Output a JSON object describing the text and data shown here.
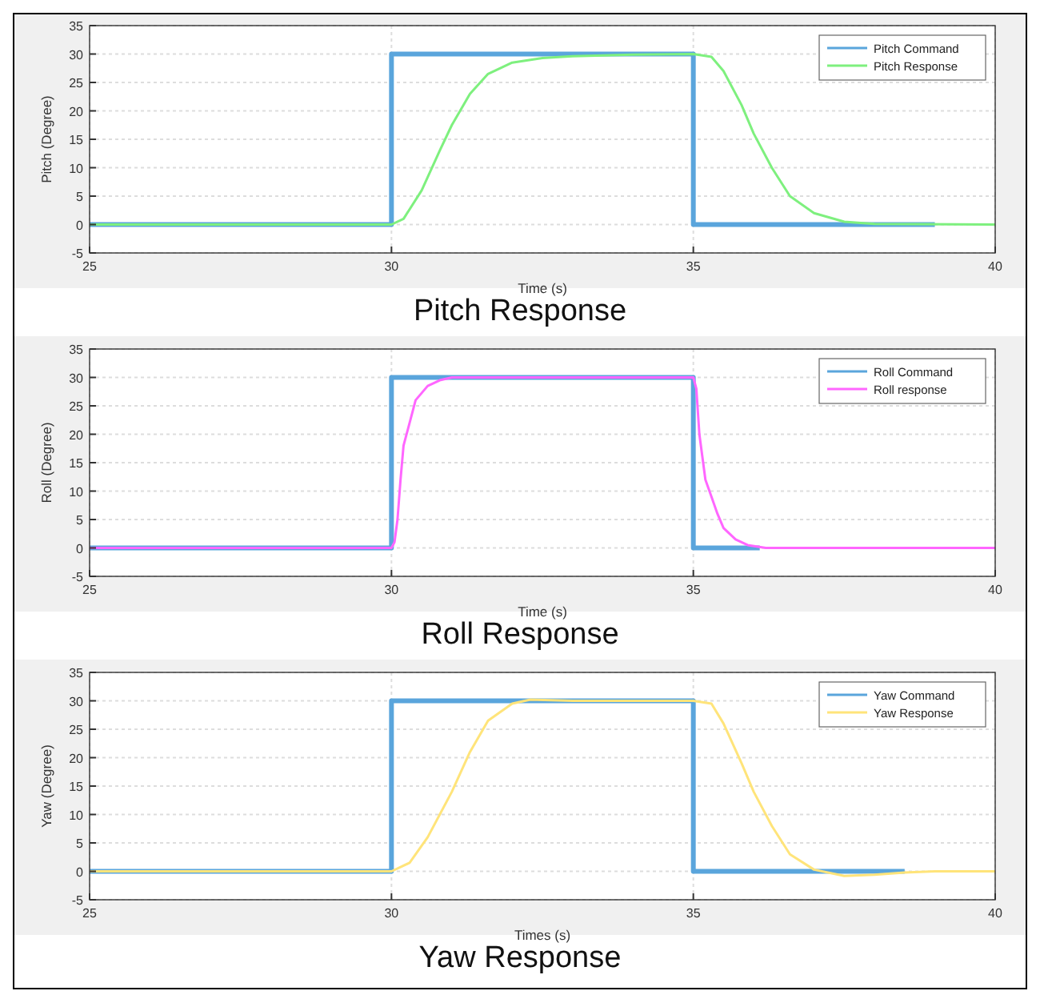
{
  "chart_data": [
    {
      "type": "line",
      "title": "Pitch Response",
      "xlabel": "Time (s)",
      "ylabel": "Pitch (Degree)",
      "xlim": [
        25,
        40
      ],
      "xticks": [
        25,
        30,
        35,
        40
      ],
      "ylim": [
        -5,
        35
      ],
      "yticks": [
        -5,
        0,
        5,
        10,
        15,
        20,
        25,
        30,
        35
      ],
      "grid": true,
      "legend": "top right",
      "series": [
        {
          "name": "Pitch Command",
          "color": "#5aa5dc",
          "x": [
            25,
            30,
            30,
            35,
            35,
            39
          ],
          "values": [
            0,
            0,
            30,
            30,
            0,
            0
          ]
        },
        {
          "name": "Pitch Response",
          "color": "#7ef07e",
          "x": [
            25,
            30,
            30.2,
            30.5,
            30.8,
            31,
            31.3,
            31.6,
            32,
            32.5,
            33,
            34,
            35,
            35.3,
            35.5,
            35.8,
            36,
            36.3,
            36.6,
            37,
            37.5,
            38,
            40
          ],
          "values": [
            0,
            0,
            1,
            6,
            13,
            17.5,
            23,
            26.5,
            28.5,
            29.3,
            29.6,
            29.9,
            30,
            29.5,
            27,
            21,
            16,
            10,
            5,
            2,
            0.5,
            0.1,
            0
          ]
        }
      ]
    },
    {
      "type": "line",
      "title": "Roll Response",
      "xlabel": "Time (s)",
      "ylabel": "Roll (Degree)",
      "xlim": [
        25,
        40
      ],
      "xticks": [
        25,
        30,
        35,
        40
      ],
      "ylim": [
        -5,
        35
      ],
      "yticks": [
        -5,
        0,
        5,
        10,
        15,
        20,
        25,
        30,
        35
      ],
      "grid": true,
      "legend": "top right",
      "series": [
        {
          "name": "Roll Command",
          "color": "#5aa5dc",
          "x": [
            25,
            30,
            30,
            35,
            35,
            36.1
          ],
          "values": [
            0,
            0,
            30,
            30,
            0,
            0
          ]
        },
        {
          "name": "Roll response",
          "color": "#ff66ff",
          "x": [
            25,
            30,
            30.05,
            30.1,
            30.15,
            30.2,
            30.3,
            30.4,
            30.6,
            30.8,
            31,
            35,
            35.05,
            35.1,
            35.2,
            35.3,
            35.4,
            35.5,
            35.7,
            35.9,
            36.2,
            40
          ],
          "values": [
            0,
            0,
            1,
            5,
            12,
            18,
            22,
            26,
            28.5,
            29.5,
            30,
            30,
            28,
            20,
            12,
            9,
            6,
            3.5,
            1.5,
            0.5,
            0,
            0
          ]
        }
      ]
    },
    {
      "type": "line",
      "title": "Yaw Response",
      "xlabel": "Times (s)",
      "ylabel": "Yaw (Degree)",
      "xlim": [
        25,
        40
      ],
      "xticks": [
        25,
        30,
        35,
        40
      ],
      "ylim": [
        -5,
        35
      ],
      "yticks": [
        -5,
        0,
        5,
        10,
        15,
        20,
        25,
        30,
        35
      ],
      "grid": true,
      "legend": "top right",
      "series": [
        {
          "name": "Yaw Command",
          "color": "#5aa5dc",
          "x": [
            25,
            30,
            30,
            35,
            35,
            38.5
          ],
          "values": [
            0,
            0,
            30,
            30,
            0,
            0
          ]
        },
        {
          "name": "Yaw Response",
          "color": "#ffe47a",
          "x": [
            25,
            30,
            30.3,
            30.6,
            31,
            31.3,
            31.6,
            32,
            32.3,
            33,
            34,
            35,
            35.3,
            35.5,
            35.8,
            36,
            36.3,
            36.6,
            37,
            37.5,
            38,
            38.5,
            39,
            40
          ],
          "values": [
            0,
            0,
            1.5,
            6,
            14,
            21,
            26.5,
            29.5,
            30.2,
            30,
            30,
            30,
            29.5,
            26,
            19,
            14,
            8,
            3,
            0.3,
            -0.8,
            -0.6,
            -0.2,
            0,
            0
          ]
        }
      ]
    }
  ]
}
